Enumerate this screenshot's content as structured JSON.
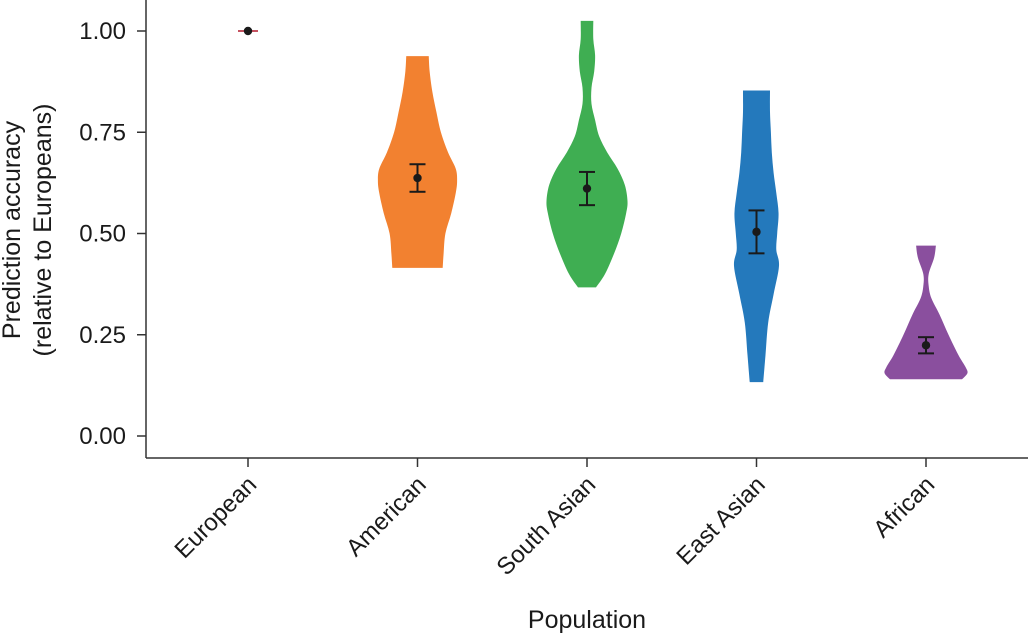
{
  "chart_data": {
    "type": "violin",
    "xlabel": "Population",
    "ylabel_line1": "Prediction accuracy",
    "ylabel_line2": "(relative to Europeans)",
    "ylim": [
      0.0,
      1.0
    ],
    "yticks": [
      {
        "value": 0.0,
        "label": "0.00"
      },
      {
        "value": 0.25,
        "label": "0.25"
      },
      {
        "value": 0.5,
        "label": "0.50"
      },
      {
        "value": 0.75,
        "label": "0.75"
      },
      {
        "value": 1.0,
        "label": "1.00"
      }
    ],
    "categories": [
      "European",
      "American",
      "South Asian",
      "East Asian",
      "African"
    ],
    "groups": [
      {
        "name": "European",
        "color": "#b2182b",
        "mean": 1.0,
        "ci_low": 1.0,
        "ci_high": 1.0,
        "density": [
          [
            0.999,
            0.1
          ],
          [
            1.0,
            0.1
          ],
          [
            1.001,
            0.1
          ]
        ]
      },
      {
        "name": "American",
        "color": "#f28130",
        "mean": 0.637,
        "ci_low": 0.603,
        "ci_high": 0.671,
        "density": [
          [
            0.415,
            0.56
          ],
          [
            0.45,
            0.58
          ],
          [
            0.5,
            0.62
          ],
          [
            0.55,
            0.75
          ],
          [
            0.6,
            0.85
          ],
          [
            0.63,
            0.88
          ],
          [
            0.66,
            0.85
          ],
          [
            0.7,
            0.68
          ],
          [
            0.75,
            0.52
          ],
          [
            0.8,
            0.42
          ],
          [
            0.85,
            0.33
          ],
          [
            0.9,
            0.27
          ],
          [
            0.938,
            0.25
          ]
        ]
      },
      {
        "name": "South Asian",
        "color": "#3fae52",
        "mean": 0.611,
        "ci_low": 0.57,
        "ci_high": 0.652,
        "density": [
          [
            0.367,
            0.2
          ],
          [
            0.4,
            0.4
          ],
          [
            0.45,
            0.6
          ],
          [
            0.5,
            0.76
          ],
          [
            0.55,
            0.87
          ],
          [
            0.58,
            0.9
          ],
          [
            0.62,
            0.84
          ],
          [
            0.66,
            0.68
          ],
          [
            0.7,
            0.45
          ],
          [
            0.74,
            0.27
          ],
          [
            0.78,
            0.18
          ],
          [
            0.82,
            0.1
          ],
          [
            0.86,
            0.1
          ],
          [
            0.9,
            0.16
          ],
          [
            0.94,
            0.18
          ],
          [
            0.98,
            0.14
          ],
          [
            1.025,
            0.14
          ]
        ]
      },
      {
        "name": "East Asian",
        "color": "#2479bc",
        "mean": 0.504,
        "ci_low": 0.451,
        "ci_high": 0.557,
        "density": [
          [
            0.133,
            0.15
          ],
          [
            0.2,
            0.2
          ],
          [
            0.28,
            0.26
          ],
          [
            0.35,
            0.38
          ],
          [
            0.42,
            0.5
          ],
          [
            0.46,
            0.44
          ],
          [
            0.5,
            0.46
          ],
          [
            0.55,
            0.49
          ],
          [
            0.6,
            0.44
          ],
          [
            0.65,
            0.38
          ],
          [
            0.7,
            0.34
          ],
          [
            0.75,
            0.32
          ],
          [
            0.8,
            0.3
          ],
          [
            0.853,
            0.3
          ]
        ]
      },
      {
        "name": "African",
        "color": "#8a4f9e",
        "mean": 0.224,
        "ci_low": 0.204,
        "ci_high": 0.244,
        "density": [
          [
            0.14,
            0.8
          ],
          [
            0.155,
            0.92
          ],
          [
            0.17,
            0.88
          ],
          [
            0.2,
            0.72
          ],
          [
            0.25,
            0.5
          ],
          [
            0.3,
            0.3
          ],
          [
            0.34,
            0.12
          ],
          [
            0.37,
            0.06
          ],
          [
            0.4,
            0.06
          ],
          [
            0.44,
            0.18
          ],
          [
            0.47,
            0.22
          ]
        ]
      }
    ]
  }
}
